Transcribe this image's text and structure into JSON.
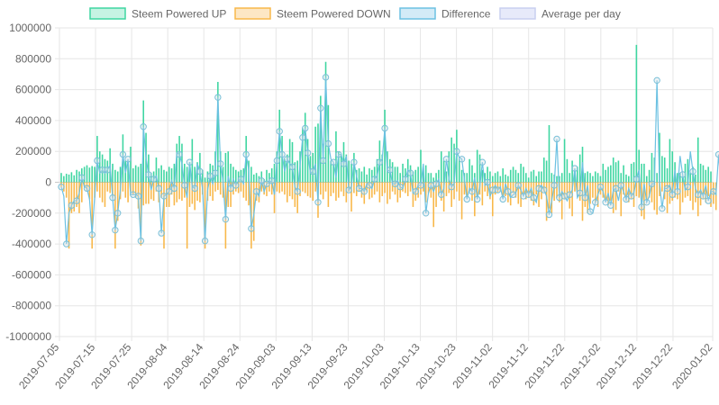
{
  "chart_data": {
    "type": "bar",
    "legend": [
      {
        "name": "Steem Powered UP",
        "fill": "#c6f3e3",
        "stroke": "#3ed6a1"
      },
      {
        "name": "Steem Powered DOWN",
        "fill": "#fde7c4",
        "stroke": "#f8b84a"
      },
      {
        "name": "Difference",
        "fill": "#d3ebf7",
        "stroke": "#6cc1e2"
      },
      {
        "name": "Average per day",
        "fill": "#e7eafa",
        "stroke": "#c9cff0"
      }
    ],
    "ylim": [
      -1000000,
      1000000
    ],
    "y_ticks": [
      "1000000",
      "800000",
      "600000",
      "400000",
      "200000",
      "0",
      "-200000",
      "-400000",
      "-600000",
      "-800000",
      "-1000000"
    ],
    "x_start": "2019-07-05",
    "x_end": "2020-01-02",
    "x_tick_labels": [
      "2019-07-05",
      "2019-07-15",
      "2019-07-25",
      "2019-08-04",
      "2019-08-14",
      "2019-08-24",
      "2019-09-03",
      "2019-09-13",
      "2019-09-23",
      "2019-10-03",
      "2019-10-13",
      "2019-10-23",
      "2019-11-02",
      "2019-11-12",
      "2019-11-22",
      "2019-12-02",
      "2019-12-12",
      "2019-12-22",
      "2020-01-02"
    ],
    "colors": {
      "up": "#3ed6a1",
      "down": "#f8b84a",
      "diff_line": "#6cc1e2",
      "diff_point": "#79c0d8",
      "grid": "#e6e6e6",
      "zero": "#c8c8c8"
    },
    "series": [
      {
        "name": "Steem Powered UP",
        "values": [
          60000,
          40000,
          55000,
          50000,
          65000,
          45000,
          80000,
          70000,
          90000,
          100000,
          110000,
          95000,
          105000,
          100000,
          300000,
          200000,
          180000,
          150000,
          140000,
          220000,
          120000,
          80000,
          70000,
          100000,
          310000,
          140000,
          120000,
          230000,
          90000,
          110000,
          100000,
          120000,
          530000,
          320000,
          180000,
          60000,
          70000,
          160000,
          90000,
          110000,
          80000,
          70000,
          100000,
          90000,
          120000,
          250000,
          300000,
          250000,
          120000,
          100000,
          130000,
          280000,
          100000,
          130000,
          190000,
          80000,
          30000,
          70000,
          120000,
          110000,
          200000,
          650000,
          200000,
          100000,
          190000,
          200000,
          120000,
          100000,
          80000,
          70000,
          80000,
          90000,
          300000,
          140000,
          100000,
          50000,
          60000,
          40000,
          70000,
          20000,
          80000,
          60000,
          90000,
          120000,
          200000,
          470000,
          300000,
          150000,
          180000,
          280000,
          260000,
          130000,
          140000,
          200000,
          350000,
          450000,
          280000,
          170000,
          190000,
          360000,
          380000,
          560000,
          250000,
          780000,
          500000,
          140000,
          120000,
          330000,
          200000,
          180000,
          260000,
          180000,
          140000,
          120000,
          190000,
          80000,
          90000,
          70000,
          100000,
          50000,
          90000,
          80000,
          100000,
          150000,
          270000,
          180000,
          470000,
          200000,
          150000,
          130000,
          100000,
          100000,
          60000,
          120000,
          90000,
          150000,
          110000,
          70000,
          80000,
          100000,
          210000,
          90000,
          110000,
          60000,
          60000,
          30000,
          60000,
          80000,
          200000,
          140000,
          70000,
          200000,
          290000,
          250000,
          340000,
          150000,
          80000,
          60000,
          60000,
          150000,
          110000,
          60000,
          210000,
          180000,
          80000,
          60000,
          100000,
          70000,
          40000,
          60000,
          70000,
          40000,
          90000,
          50000,
          40000,
          80000,
          100000,
          80000,
          60000,
          120000,
          100000,
          60000,
          30000,
          70000,
          80000,
          40000,
          70000,
          70000,
          160000,
          140000,
          370000,
          60000,
          50000,
          40000,
          40000,
          60000,
          280000,
          150000,
          60000,
          140000,
          70000,
          100000,
          180000,
          230000,
          60000,
          70000,
          60000,
          40000,
          70000,
          60000,
          40000,
          120000,
          80000,
          100000,
          110000,
          160000,
          130000,
          140000,
          60000,
          110000,
          50000,
          40000,
          120000,
          130000,
          890000,
          210000,
          120000,
          120000,
          40000,
          80000,
          190000,
          160000,
          60000,
          320000,
          170000,
          160000,
          90000,
          280000,
          200000,
          130000,
          60000,
          60000,
          40000,
          120000,
          150000,
          60000,
          100000,
          50000,
          290000,
          120000,
          110000,
          80000,
          100000,
          70000
        ]
      },
      {
        "name": "Steem Powered DOWN",
        "values": [
          -30000,
          -60000,
          -100000,
          -430000,
          -200000,
          -190000,
          -160000,
          -200000,
          -130000,
          -30000,
          -60000,
          -110000,
          -430000,
          -100000,
          -60000,
          -100000,
          -130000,
          -160000,
          -60000,
          -70000,
          -100000,
          -430000,
          -250000,
          -110000,
          -60000,
          -100000,
          -130000,
          -60000,
          -80000,
          -100000,
          -170000,
          -410000,
          -150000,
          -140000,
          -140000,
          -110000,
          -120000,
          -60000,
          -130000,
          -100000,
          -430000,
          -160000,
          -160000,
          -80000,
          -150000,
          -130000,
          -110000,
          -120000,
          -100000,
          -430000,
          -160000,
          -140000,
          -180000,
          -120000,
          -130000,
          -80000,
          -430000,
          -120000,
          -90000,
          -120000,
          -60000,
          -50000,
          -80000,
          -100000,
          -430000,
          -160000,
          -160000,
          -80000,
          -60000,
          -70000,
          -60000,
          -100000,
          -120000,
          -150000,
          -430000,
          -380000,
          -120000,
          -130000,
          -60000,
          -80000,
          -90000,
          -60000,
          -80000,
          -200000,
          -60000,
          -70000,
          -60000,
          -80000,
          -130000,
          -90000,
          -110000,
          -160000,
          -200000,
          -90000,
          -60000,
          -70000,
          -90000,
          -100000,
          -120000,
          -60000,
          -230000,
          -80000,
          -110000,
          -60000,
          -160000,
          -90000,
          -70000,
          -120000,
          -100000,
          -60000,
          -90000,
          -130000,
          -60000,
          -190000,
          -70000,
          -90000,
          -60000,
          -100000,
          -140000,
          -60000,
          -110000,
          -100000,
          -80000,
          -60000,
          -130000,
          -90000,
          -70000,
          -140000,
          -110000,
          -60000,
          -80000,
          -130000,
          -100000,
          -60000,
          -70000,
          -90000,
          -60000,
          -160000,
          -120000,
          -100000,
          -80000,
          -60000,
          -130000,
          -70000,
          -100000,
          -290000,
          -160000,
          -80000,
          -120000,
          -190000,
          -90000,
          -70000,
          -160000,
          -110000,
          -60000,
          -120000,
          -240000,
          -80000,
          -100000,
          -60000,
          -120000,
          -220000,
          -90000,
          -80000,
          -150000,
          -60000,
          -90000,
          -110000,
          -220000,
          -80000,
          -70000,
          -60000,
          -100000,
          -90000,
          -130000,
          -150000,
          -70000,
          -100000,
          -140000,
          -160000,
          -80000,
          -110000,
          -100000,
          -120000,
          -150000,
          -80000,
          -160000,
          -110000,
          -60000,
          -250000,
          -170000,
          -200000,
          -120000,
          -100000,
          -130000,
          -240000,
          -110000,
          -100000,
          -170000,
          -220000,
          -60000,
          -90000,
          -120000,
          -250000,
          -160000,
          -200000,
          -140000,
          -100000,
          -130000,
          -160000,
          -80000,
          -100000,
          -110000,
          -150000,
          -120000,
          -200000,
          -180000,
          -60000,
          -220000,
          -80000,
          -120000,
          -130000,
          -110000,
          -160000,
          -90000,
          -100000,
          -220000,
          -240000,
          -120000,
          -100000,
          -130000,
          -180000,
          -210000,
          -90000,
          -60000,
          -110000,
          -200000,
          -140000,
          -120000,
          -100000,
          -110000,
          -210000,
          -130000,
          -100000,
          -90000,
          -120000,
          -180000,
          -130000,
          -220000,
          -150000,
          -110000,
          -130000,
          -90000,
          -160000,
          -140000,
          -180000
        ]
      },
      {
        "name": "Difference",
        "values": [
          -30000,
          -90000,
          -400000,
          -200000,
          -150000,
          -120000,
          -120000,
          -70000,
          30000,
          -30000,
          -40000,
          -110000,
          -340000,
          -90000,
          140000,
          60000,
          80000,
          60000,
          80000,
          110000,
          -100000,
          -310000,
          -200000,
          -50000,
          180000,
          60000,
          150000,
          -80000,
          -80000,
          -80000,
          -90000,
          -380000,
          360000,
          160000,
          50000,
          -50000,
          20000,
          40000,
          -40000,
          -330000,
          -90000,
          -80000,
          -60000,
          10000,
          -40000,
          190000,
          180000,
          120000,
          -20000,
          -100000,
          130000,
          -30000,
          -40000,
          120000,
          70000,
          -40000,
          -380000,
          -50000,
          40000,
          -10000,
          60000,
          550000,
          120000,
          10000,
          -240000,
          40000,
          -40000,
          20000,
          -20000,
          10000,
          20000,
          -10000,
          180000,
          80000,
          -300000,
          -210000,
          -60000,
          -90000,
          10000,
          -60000,
          -10000,
          0,
          10000,
          -80000,
          140000,
          330000,
          180000,
          70000,
          150000,
          120000,
          100000,
          -30000,
          -60000,
          110000,
          290000,
          350000,
          190000,
          60000,
          70000,
          120000,
          -130000,
          480000,
          140000,
          680000,
          250000,
          150000,
          130000,
          30000,
          180000,
          180000,
          120000,
          170000,
          -50000,
          -30000,
          130000,
          40000,
          -40000,
          -40000,
          -60000,
          -10000,
          -20000,
          -40000,
          20000,
          40000,
          130000,
          150000,
          350000,
          70000,
          80000,
          -10000,
          -10000,
          10000,
          -30000,
          -40000,
          20000,
          80000,
          60000,
          -70000,
          -60000,
          -20000,
          -20000,
          120000,
          -200000,
          -70000,
          -20000,
          -60000,
          -10000,
          20000,
          -80000,
          -40000,
          150000,
          20000,
          -30000,
          -10000,
          200000,
          160000,
          150000,
          20000,
          -110000,
          -40000,
          -60000,
          30000,
          -110000,
          -30000,
          130000,
          -20000,
          0,
          -90000,
          -50000,
          -20000,
          -50000,
          -30000,
          -110000,
          -10000,
          -60000,
          -100000,
          -80000,
          -70000,
          -20000,
          -50000,
          -90000,
          -40000,
          -80000,
          -40000,
          -100000,
          -130000,
          -40000,
          -20000,
          -50000,
          -90000,
          -210000,
          -120000,
          -20000,
          280000,
          -100000,
          -60000,
          -90000,
          -120000,
          -80000,
          -50000,
          90000,
          -100000,
          -70000,
          130000,
          -100000,
          -20000,
          -190000,
          -200000,
          -130000,
          -80000,
          -30000,
          -60000,
          -130000,
          -70000,
          -150000,
          -50000,
          -40000,
          -120000,
          -20000,
          -60000,
          -110000,
          -40000,
          -90000,
          -70000,
          20000,
          80000,
          -160000,
          -10000,
          -130000,
          -90000,
          -10000,
          -10000,
          660000,
          0,
          -170000,
          -40000,
          -40000,
          -20000,
          -80000,
          80000,
          -60000,
          170000,
          50000,
          -50000,
          -30000,
          200000,
          70000,
          -40000,
          -80000,
          -50000,
          -90000,
          -20000,
          -120000,
          -60000,
          -60000,
          -80000,
          180000,
          -40000,
          -90000,
          -70000,
          -70000,
          -110000
        ]
      }
    ]
  }
}
